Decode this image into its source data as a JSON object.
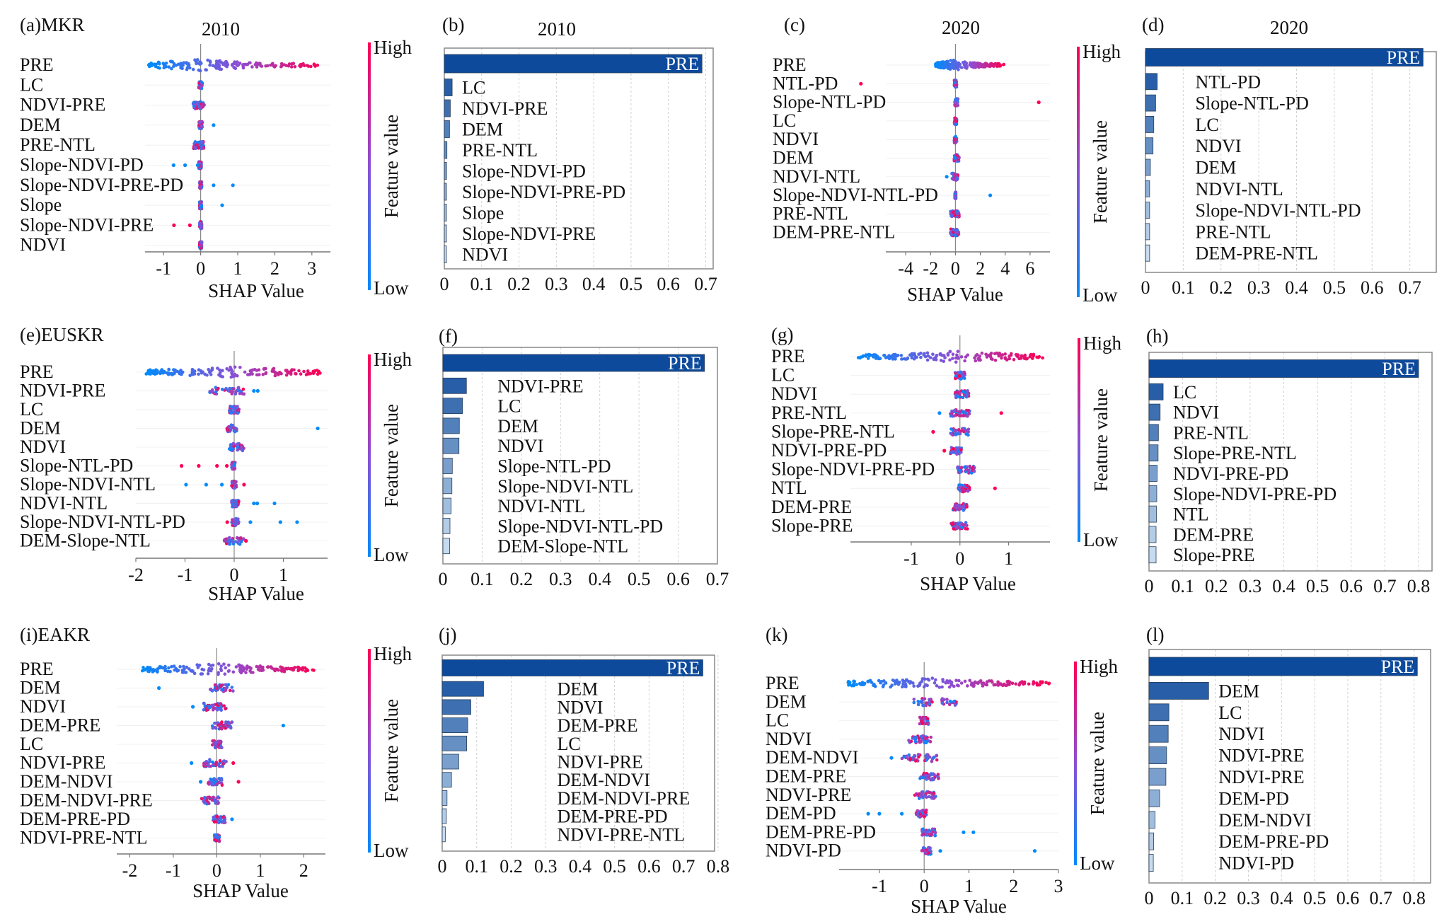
{
  "figure": {
    "colorbar": {
      "high_label": "High",
      "low_label": "Low",
      "title": "Feature value",
      "high_color": "#ff0052",
      "low_color": "#008bfb",
      "mid_color": "#8a4fd6"
    },
    "shap_xlabel": "SHAP Value",
    "bar_label_color": "#ffffff",
    "bar_dark_color": "#0d4a9c",
    "bar_light_color": "#c6dbef"
  },
  "chart_data": [
    {
      "id": "a",
      "type": "scatter",
      "subtype": "shap-beeswarm",
      "panel_label": "(a)MKR",
      "title": "2010",
      "xlabel": "SHAP Value",
      "xlim": [
        -1.5,
        3.5
      ],
      "xticks": [
        "-1",
        "0",
        "1",
        "2",
        "3"
      ],
      "xtick_values": [
        -1,
        0,
        1,
        2,
        3
      ],
      "features": [
        "PRE",
        "LC",
        "NDVI-PRE",
        "DEM",
        "PRE-NTL",
        "Slope-NDVI-PD",
        "Slope-NDVI-PRE-PD",
        "Slope",
        "Slope-NDVI-PRE",
        "NDVI"
      ],
      "spread": [
        {
          "min": -1.4,
          "max": 3.3,
          "density": "wide",
          "outliers": []
        },
        {
          "min": -0.05,
          "max": 0.05,
          "outliers": []
        },
        {
          "min": -0.2,
          "max": 0.1,
          "outliers": []
        },
        {
          "min": -0.05,
          "max": 0.05,
          "outliers": [
            {
              "x": 0.35,
              "c": "low"
            }
          ]
        },
        {
          "min": -0.2,
          "max": 0.1,
          "outliers": []
        },
        {
          "min": -0.05,
          "max": 0.02,
          "outliers": [
            {
              "x": -0.73,
              "c": "low"
            },
            {
              "x": -0.42,
              "c": "low"
            },
            {
              "x": -0.08,
              "c": "low"
            }
          ]
        },
        {
          "min": -0.03,
          "max": 0.03,
          "outliers": [
            {
              "x": 0.35,
              "c": "low"
            },
            {
              "x": 0.87,
              "c": "low"
            }
          ]
        },
        {
          "min": -0.03,
          "max": 0.03,
          "outliers": [
            {
              "x": 0.58,
              "c": "low"
            }
          ]
        },
        {
          "min": -0.03,
          "max": 0.03,
          "outliers": [
            {
              "x": -0.72,
              "c": "high"
            },
            {
              "x": -0.29,
              "c": "high"
            }
          ]
        },
        {
          "min": -0.03,
          "max": 0.03,
          "outliers": []
        }
      ]
    },
    {
      "id": "b",
      "type": "bar",
      "orientation": "horizontal",
      "panel_label": "(b)",
      "title": "2010",
      "categories": [
        "PRE",
        "LC",
        "NDVI-PRE",
        "DEM",
        "PRE-NTL",
        "Slope-NDVI-PD",
        "Slope-NDVI-PRE-PD",
        "Slope",
        "Slope-NDVI-PRE",
        "NDVI"
      ],
      "values": [
        0.69,
        0.021,
        0.016,
        0.014,
        0.007,
        0.006,
        0.005,
        0.004,
        0.004,
        0.004
      ],
      "xlim": [
        0,
        0.72
      ],
      "xticks": [
        "0",
        "0.1",
        "0.2",
        "0.3",
        "0.4",
        "0.5",
        "0.6",
        "0.7"
      ],
      "xtick_values": [
        0,
        0.1,
        0.2,
        0.3,
        0.4,
        0.5,
        0.6,
        0.7
      ],
      "grid": true
    },
    {
      "id": "c",
      "type": "scatter",
      "subtype": "shap-beeswarm",
      "panel_label": "(c)",
      "title": "2020",
      "xlabel": "SHAP Value",
      "xlim": [
        -5.6,
        7.6
      ],
      "xticks": [
        "-4",
        "-2",
        "0",
        "2",
        "4",
        "6"
      ],
      "xtick_values": [
        -4,
        -2,
        0,
        2,
        4,
        6
      ],
      "features": [
        "PRE",
        "NTL-PD",
        "Slope-NTL-PD",
        "LC",
        "NDVI",
        "DEM",
        "NDVI-NTL",
        "Slope-NDVI-NTL-PD",
        "PRE-NTL",
        "DEM-PRE-NTL"
      ],
      "spread": [
        {
          "min": -1.6,
          "max": 3.9,
          "density": "wide",
          "outliers": []
        },
        {
          "min": -0.1,
          "max": 0.1,
          "outliers": [
            {
              "x": -7.6,
              "c": "high"
            }
          ]
        },
        {
          "min": -0.05,
          "max": 0.2,
          "outliers": [
            {
              "x": 6.7,
              "c": "high"
            }
          ]
        },
        {
          "min": -0.1,
          "max": 0.1,
          "outliers": []
        },
        {
          "min": -0.1,
          "max": 0.1,
          "outliers": []
        },
        {
          "min": -0.1,
          "max": 0.3,
          "outliers": []
        },
        {
          "min": -0.3,
          "max": 0.2,
          "outliers": [
            {
              "x": -0.7,
              "c": "low"
            }
          ]
        },
        {
          "min": -0.05,
          "max": 0.05,
          "outliers": [
            {
              "x": 2.8,
              "c": "low"
            }
          ]
        },
        {
          "min": -0.4,
          "max": 0.3,
          "outliers": []
        },
        {
          "min": -0.4,
          "max": 0.3,
          "outliers": []
        }
      ]
    },
    {
      "id": "d",
      "type": "bar",
      "orientation": "horizontal",
      "panel_label": "(d)",
      "title": "2020",
      "categories": [
        "PRE",
        "NTL-PD",
        "Slope-NTL-PD",
        "LC",
        "NDVI",
        "DEM",
        "NDVI-NTL",
        "Slope-NDVI-NTL-PD",
        "PRE-NTL",
        "DEM-PRE-NTL"
      ],
      "values": [
        0.735,
        0.031,
        0.027,
        0.022,
        0.02,
        0.013,
        0.011,
        0.011,
        0.011,
        0.011
      ],
      "xlim": [
        0,
        0.77
      ],
      "xticks": [
        "0",
        "0.1",
        "0.2",
        "0.3",
        "0.4",
        "0.5",
        "0.6",
        "0.7"
      ],
      "xtick_values": [
        0,
        0.1,
        0.2,
        0.3,
        0.4,
        0.5,
        0.6,
        0.7
      ],
      "grid": true
    },
    {
      "id": "e",
      "type": "scatter",
      "subtype": "shap-beeswarm",
      "panel_label": "(e)EUSKR",
      "title": "",
      "xlabel": "SHAP Value",
      "xlim": [
        -2.0,
        1.9
      ],
      "xticks": [
        "-2",
        "-1",
        "0",
        "1"
      ],
      "xtick_values": [
        -2,
        -1,
        0,
        1
      ],
      "features": [
        "PRE",
        "NDVI-PRE",
        "LC",
        "DEM",
        "NDVI",
        "Slope-NTL-PD",
        "Slope-NDVI-NTL",
        "NDVI-NTL",
        "Slope-NDVI-NTL-PD",
        "DEM-Slope-NTL"
      ],
      "spread": [
        {
          "min": -1.8,
          "max": 1.75,
          "density": "wide",
          "outliers": []
        },
        {
          "min": -0.5,
          "max": 0.2,
          "outliers": [
            {
              "x": 0.4,
              "c": "low"
            },
            {
              "x": 0.48,
              "c": "low"
            }
          ]
        },
        {
          "min": -0.1,
          "max": 0.1,
          "outliers": []
        },
        {
          "min": -0.15,
          "max": 0.05,
          "outliers": [
            {
              "x": 1.7,
              "c": "low"
            }
          ]
        },
        {
          "min": -0.1,
          "max": 0.2,
          "outliers": []
        },
        {
          "min": -0.05,
          "max": 0.02,
          "outliers": [
            {
              "x": -1.07,
              "c": "high"
            },
            {
              "x": -0.72,
              "c": "high"
            },
            {
              "x": -0.35,
              "c": "high"
            },
            {
              "x": -0.15,
              "c": "high"
            }
          ]
        },
        {
          "min": -0.05,
          "max": 0.05,
          "outliers": [
            {
              "x": -0.98,
              "c": "low"
            },
            {
              "x": -0.57,
              "c": "low"
            },
            {
              "x": -0.25,
              "c": "low"
            },
            {
              "x": 0.2,
              "c": "high"
            }
          ]
        },
        {
          "min": -0.05,
          "max": 0.1,
          "outliers": [
            {
              "x": 0.4,
              "c": "low"
            },
            {
              "x": 0.47,
              "c": "low"
            },
            {
              "x": 0.82,
              "c": "low"
            }
          ]
        },
        {
          "min": -0.05,
          "max": 0.1,
          "outliers": [
            {
              "x": -0.14,
              "c": "high"
            },
            {
              "x": 0.33,
              "c": "low"
            },
            {
              "x": 0.94,
              "c": "low"
            },
            {
              "x": 1.28,
              "c": "low"
            }
          ]
        },
        {
          "min": -0.2,
          "max": 0.2,
          "outliers": [
            {
              "x": 0.24,
              "c": "high"
            }
          ]
        }
      ]
    },
    {
      "id": "f",
      "type": "bar",
      "orientation": "horizontal",
      "panel_label": "(f)",
      "title": "",
      "categories": [
        "PRE",
        "NDVI-PRE",
        "LC",
        "DEM",
        "NDVI",
        "Slope-NTL-PD",
        "Slope-NDVI-NTL",
        "NDVI-NTL",
        "Slope-NDVI-NTL-PD",
        "DEM-Slope-NTL"
      ],
      "values": [
        0.667,
        0.06,
        0.05,
        0.042,
        0.041,
        0.024,
        0.023,
        0.021,
        0.018,
        0.017
      ],
      "xlim": [
        0,
        0.7
      ],
      "xticks": [
        "0",
        "0.1",
        "0.2",
        "0.3",
        "0.4",
        "0.5",
        "0.6",
        "0.7"
      ],
      "xtick_values": [
        0,
        0.1,
        0.2,
        0.3,
        0.4,
        0.5,
        0.6,
        0.7
      ],
      "grid": true
    },
    {
      "id": "g",
      "type": "scatter",
      "subtype": "shap-beeswarm",
      "panel_label": "(g)",
      "title": "",
      "xlabel": "SHAP Value",
      "xlim": [
        -2.25,
        1.85
      ],
      "xticks": [
        "-1",
        "0",
        "1"
      ],
      "xtick_values": [
        -1,
        0,
        1
      ],
      "features": [
        "PRE",
        "LC",
        "NDVI",
        "PRE-NTL",
        "Slope-PRE-NTL",
        "NDVI-PRE-PD",
        "Slope-NDVI-PRE-PD",
        "NTL",
        "DEM-PRE",
        "Slope-PRE"
      ],
      "spread": [
        {
          "min": -2.1,
          "max": 1.7,
          "density": "wide",
          "outliers": []
        },
        {
          "min": -0.1,
          "max": 0.1,
          "outliers": []
        },
        {
          "min": -0.1,
          "max": 0.18,
          "outliers": []
        },
        {
          "min": -0.2,
          "max": 0.2,
          "outliers": [
            {
              "x": -0.42,
              "c": "low"
            },
            {
              "x": 0.85,
              "c": "high"
            }
          ]
        },
        {
          "min": -0.2,
          "max": 0.18,
          "outliers": [
            {
              "x": -0.55,
              "c": "high"
            }
          ]
        },
        {
          "min": -0.2,
          "max": 0.05,
          "outliers": [
            {
              "x": -0.32,
              "c": "high"
            }
          ]
        },
        {
          "min": -0.08,
          "max": 0.3,
          "outliers": []
        },
        {
          "min": -0.03,
          "max": 0.2,
          "outliers": [
            {
              "x": 0.72,
              "c": "high"
            }
          ]
        },
        {
          "min": -0.15,
          "max": 0.15,
          "outliers": []
        },
        {
          "min": -0.18,
          "max": 0.18,
          "outliers": []
        }
      ]
    },
    {
      "id": "h",
      "type": "bar",
      "orientation": "horizontal",
      "panel_label": "(h)",
      "title": "",
      "categories": [
        "PRE",
        "LC",
        "NDVI",
        "PRE-NTL",
        "Slope-PRE-NTL",
        "NDVI-PRE-PD",
        "Slope-NDVI-PRE-PD",
        "NTL",
        "DEM-PRE",
        "Slope-PRE"
      ],
      "values": [
        0.8,
        0.042,
        0.033,
        0.028,
        0.027,
        0.024,
        0.023,
        0.022,
        0.021,
        0.021
      ],
      "xlim": [
        0,
        0.84
      ],
      "xticks": [
        "0",
        "0.1",
        "0.2",
        "0.3",
        "0.4",
        "0.5",
        "0.6",
        "0.7",
        "0.8"
      ],
      "xtick_values": [
        0,
        0.1,
        0.2,
        0.3,
        0.4,
        0.5,
        0.6,
        0.7,
        0.8
      ],
      "grid": true
    },
    {
      "id": "i",
      "type": "scatter",
      "subtype": "shap-beeswarm",
      "panel_label": "(i)EAKR",
      "title": "",
      "xlabel": "SHAP Value",
      "xlim": [
        -2.3,
        2.5
      ],
      "xticks": [
        "-2",
        "-1",
        "0",
        "1",
        "2"
      ],
      "xtick_values": [
        -2,
        -1,
        0,
        1,
        2
      ],
      "features": [
        "PRE",
        "DEM",
        "NDVI",
        "DEM-PRE",
        "LC",
        "NDVI-PRE",
        "DEM-NDVI",
        "DEM-NDVI-PRE",
        "DEM-PRE-PD",
        "NDVI-PRE-NTL"
      ],
      "spread": [
        {
          "min": -1.75,
          "max": 2.25,
          "density": "wide",
          "outliers": []
        },
        {
          "min": -0.15,
          "max": 0.4,
          "outliers": [
            {
              "x": -1.33,
              "c": "low"
            }
          ]
        },
        {
          "min": -0.3,
          "max": 0.22,
          "outliers": [
            {
              "x": -0.55,
              "c": "low"
            }
          ]
        },
        {
          "min": -0.12,
          "max": 0.36,
          "outliers": [
            {
              "x": 1.53,
              "c": "low"
            }
          ]
        },
        {
          "min": -0.1,
          "max": 0.12,
          "outliers": []
        },
        {
          "min": -0.3,
          "max": 0.22,
          "outliers": [
            {
              "x": -0.58,
              "c": "low"
            },
            {
              "x": 0.38,
              "c": "high"
            }
          ]
        },
        {
          "min": -0.2,
          "max": 0.15,
          "outliers": [
            {
              "x": -0.37,
              "c": "low"
            },
            {
              "x": 0.5,
              "c": "high"
            }
          ]
        },
        {
          "min": -0.35,
          "max": 0.05,
          "outliers": []
        },
        {
          "min": -0.1,
          "max": 0.2,
          "outliers": [
            {
              "x": 0.35,
              "c": "low"
            }
          ]
        },
        {
          "min": -0.05,
          "max": 0.06,
          "outliers": []
        }
      ]
    },
    {
      "id": "j",
      "type": "bar",
      "orientation": "horizontal",
      "panel_label": "(j)",
      "title": "",
      "categories": [
        "PRE",
        "DEM",
        "NDVI",
        "DEM-PRE",
        "LC",
        "NDVI-PRE",
        "DEM-NDVI",
        "DEM-NDVI-PRE",
        "DEM-PRE-PD",
        "NDVI-PRE-NTL"
      ],
      "values": [
        0.756,
        0.12,
        0.083,
        0.074,
        0.071,
        0.048,
        0.027,
        0.014,
        0.012,
        0.009
      ],
      "xlim": [
        0,
        0.79
      ],
      "xticks": [
        "0",
        "0.1",
        "0.2",
        "0.3",
        "0.4",
        "0.5",
        "0.6",
        "0.7",
        "0.8"
      ],
      "xtick_values": [
        0,
        0.1,
        0.2,
        0.3,
        0.4,
        0.5,
        0.6,
        0.7,
        0.8
      ],
      "grid": true
    },
    {
      "id": "k",
      "type": "scatter",
      "subtype": "shap-beeswarm",
      "panel_label": "(k)",
      "title": "",
      "xlabel": "SHAP Value",
      "xlim": [
        -1.9,
        3.0
      ],
      "xticks": [
        "-1",
        "0",
        "1",
        "2",
        "3"
      ],
      "xtick_values": [
        -1,
        0,
        1,
        2,
        3
      ],
      "features": [
        "PRE",
        "DEM",
        "LC",
        "NDVI",
        "DEM-NDVI",
        "DEM-PRE",
        "NDVI-PRE",
        "DEM-PD",
        "DEM-PRE-PD",
        "NDVI-PD"
      ],
      "spread": [
        {
          "min": -1.7,
          "max": 2.8,
          "density": "wide",
          "outliers": []
        },
        {
          "min": -0.25,
          "max": 0.72,
          "outliers": []
        },
        {
          "min": -0.1,
          "max": 0.1,
          "outliers": []
        },
        {
          "min": -0.35,
          "max": 0.15,
          "outliers": []
        },
        {
          "min": -0.5,
          "max": 0.3,
          "outliers": [
            {
              "x": -0.73,
              "c": "low"
            }
          ]
        },
        {
          "min": -0.1,
          "max": 0.33,
          "outliers": []
        },
        {
          "min": -0.22,
          "max": 0.26,
          "outliers": []
        },
        {
          "min": -0.18,
          "max": 0.05,
          "outliers": [
            {
              "x": -1.25,
              "c": "low"
            },
            {
              "x": -1.0,
              "c": "low"
            },
            {
              "x": -0.5,
              "c": "low"
            }
          ]
        },
        {
          "min": -0.05,
          "max": 0.25,
          "outliers": [
            {
              "x": 0.88,
              "c": "low"
            },
            {
              "x": 1.1,
              "c": "low"
            }
          ]
        },
        {
          "min": -0.05,
          "max": 0.15,
          "outliers": [
            {
              "x": 0.36,
              "c": "low"
            },
            {
              "x": 2.47,
              "c": "low"
            }
          ]
        }
      ]
    },
    {
      "id": "l",
      "type": "bar",
      "orientation": "horizontal",
      "panel_label": "(l)",
      "title": "",
      "categories": [
        "PRE",
        "DEM",
        "LC",
        "NDVI",
        "NDVI-PRE",
        "NDVI-PRE",
        "DEM-PD",
        "DEM-NDVI",
        "DEM-PRE-PD",
        "NDVI-PD"
      ],
      "values": [
        0.81,
        0.18,
        0.06,
        0.058,
        0.053,
        0.051,
        0.032,
        0.018,
        0.014,
        0.013
      ],
      "xlim": [
        0,
        0.85
      ],
      "xticks": [
        "0",
        "0.1",
        "0.2",
        "0.3",
        "0.4",
        "0.5",
        "0.6",
        "0.7",
        "0.8"
      ],
      "xtick_values": [
        0,
        0.1,
        0.2,
        0.3,
        0.4,
        0.5,
        0.6,
        0.7,
        0.8
      ],
      "grid": true
    }
  ]
}
